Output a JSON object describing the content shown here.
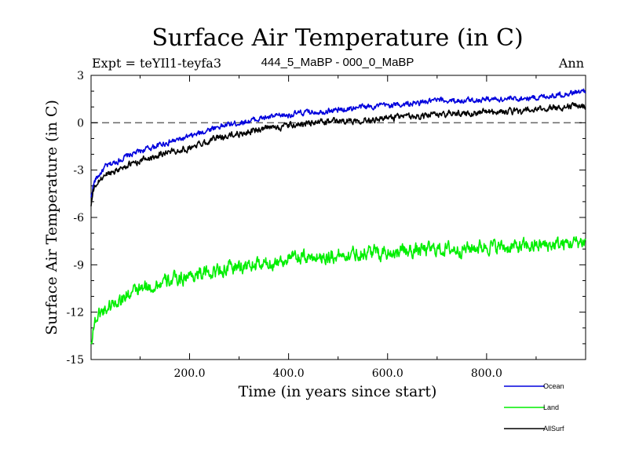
{
  "chart_data": {
    "type": "line",
    "title": "Surface Air Temperature (in C)",
    "experiment_label": "Expt = teYIl1-teyfa3",
    "subtitle": "444_5_MaBP - 000_0_MaBP",
    "period_label": "Ann",
    "xlabel": "Time (in years since start)",
    "ylabel": "Surface Air Temperature (in C)",
    "xlim": [
      1,
      1000
    ],
    "ylim": [
      -15,
      3
    ],
    "x_ticks": [
      200,
      400,
      600,
      800
    ],
    "x_tick_labels": [
      "200.0",
      "400.0",
      "600.0",
      "800.0"
    ],
    "y_ticks": [
      -15,
      -12,
      -9,
      -6,
      -3,
      0,
      3
    ],
    "y_tick_labels": [
      "-15",
      "-12",
      "-9",
      "-6",
      "-3",
      "0",
      "3"
    ],
    "reference_line": 0,
    "series": [
      {
        "name": "Ocean",
        "color": "#0000dd",
        "x": [
          1,
          5,
          10,
          20,
          30,
          50,
          75,
          100,
          150,
          200,
          250,
          300,
          350,
          400,
          450,
          500,
          550,
          600,
          650,
          700,
          750,
          800,
          850,
          900,
          950,
          1000
        ],
        "values": [
          -4.8,
          -4.0,
          -3.6,
          -3.2,
          -2.8,
          -2.5,
          -2.1,
          -1.8,
          -1.3,
          -0.9,
          -0.3,
          0.0,
          0.3,
          0.5,
          0.7,
          0.8,
          1.0,
          1.1,
          1.2,
          1.4,
          1.4,
          1.5,
          1.5,
          1.6,
          1.8,
          2.0
        ]
      },
      {
        "name": "Land",
        "color": "#00ee00",
        "x": [
          1,
          5,
          10,
          20,
          30,
          50,
          75,
          100,
          150,
          200,
          250,
          300,
          350,
          400,
          450,
          500,
          550,
          600,
          650,
          700,
          750,
          800,
          850,
          900,
          950,
          1000
        ],
        "values": [
          -14.0,
          -13.0,
          -12.5,
          -12.0,
          -11.8,
          -11.3,
          -10.9,
          -10.6,
          -10.1,
          -9.7,
          -9.4,
          -9.1,
          -9.0,
          -8.6,
          -8.5,
          -8.4,
          -8.2,
          -8.2,
          -8.1,
          -8.0,
          -8.0,
          -7.8,
          -7.9,
          -7.8,
          -7.7,
          -7.5
        ]
      },
      {
        "name": "AllSurf",
        "color": "#000000",
        "x": [
          1,
          5,
          10,
          20,
          30,
          50,
          75,
          100,
          150,
          200,
          250,
          300,
          350,
          400,
          450,
          500,
          550,
          600,
          650,
          700,
          750,
          800,
          850,
          900,
          950,
          1000
        ],
        "values": [
          -5.3,
          -4.4,
          -4.0,
          -3.6,
          -3.3,
          -3.0,
          -2.7,
          -2.4,
          -1.9,
          -1.6,
          -1.0,
          -0.7,
          -0.4,
          -0.2,
          0.0,
          0.1,
          0.2,
          0.3,
          0.4,
          0.5,
          0.6,
          0.7,
          0.7,
          0.8,
          1.0,
          1.1
        ]
      }
    ],
    "legend_position": "bottom-right"
  }
}
